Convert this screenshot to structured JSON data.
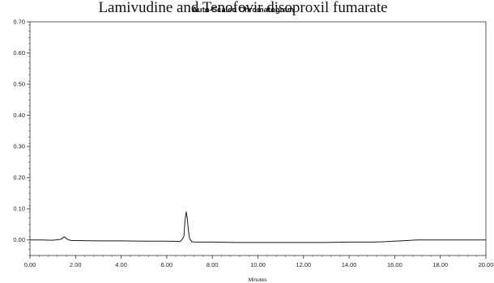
{
  "header": {
    "heading": "Lamivudine and Tenofovir disoproxil fumarate"
  },
  "chart_data": {
    "type": "line",
    "title": "Auto-Scaled Chromatogram",
    "xlabel": "Minutes",
    "ylabel": "",
    "xlim": [
      0,
      20
    ],
    "ylim": [
      -0.05,
      0.7
    ],
    "x_ticks": [
      "0.00",
      "2.00",
      "4.00",
      "6.00",
      "8.00",
      "10.00",
      "12.00",
      "14.00",
      "16.00",
      "18.00",
      "20.00"
    ],
    "y_ticks": [
      "0.70",
      "0.60",
      "0.50",
      "0.40",
      "0.30",
      "0.20",
      "0.10",
      "0.00"
    ],
    "grid": false,
    "series": [
      {
        "x": [
          0,
          0.5,
          1.0,
          1.35,
          1.45,
          1.5,
          1.55,
          1.6,
          1.7,
          1.85,
          2.0,
          3.0,
          4.0,
          5.0,
          6.0,
          6.6,
          6.75,
          6.8,
          6.85,
          6.9,
          6.95,
          7.0,
          7.1,
          7.25,
          7.5,
          8.0,
          9.0,
          10.0,
          11.0,
          12.0,
          13.0,
          14.0,
          14.5,
          15.0,
          15.5,
          16.0,
          16.5,
          17.0,
          17.5,
          18.0,
          19.0,
          20.0
        ],
        "y": [
          0.0,
          0.0,
          -0.001,
          0.002,
          0.007,
          0.01,
          0.008,
          0.004,
          0.0,
          -0.002,
          -0.002,
          -0.003,
          -0.003,
          -0.004,
          -0.004,
          -0.005,
          0.01,
          0.06,
          0.09,
          0.07,
          0.03,
          0.005,
          -0.006,
          -0.007,
          -0.007,
          -0.007,
          -0.008,
          -0.008,
          -0.008,
          -0.008,
          -0.008,
          -0.007,
          -0.007,
          -0.007,
          -0.006,
          -0.004,
          -0.002,
          0.0,
          0.0,
          0.0,
          0.0,
          0.0
        ]
      }
    ],
    "colors": {
      "line": "#1a1a1a",
      "axis": "#333333"
    }
  }
}
